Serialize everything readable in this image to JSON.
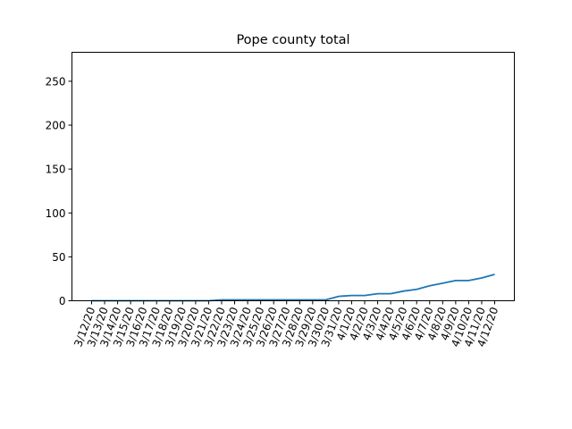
{
  "chart_data": {
    "type": "line",
    "title": "Pope county total",
    "xlabel": "",
    "ylabel": "",
    "ylim": [
      0,
      283
    ],
    "yticks": [
      0,
      50,
      100,
      150,
      200,
      250
    ],
    "grid": false,
    "line_color": "#1f77b4",
    "x": [
      "3/12/20",
      "3/13/20",
      "3/14/20",
      "3/15/20",
      "3/16/20",
      "3/17/20",
      "3/18/20",
      "3/19/20",
      "3/20/20",
      "3/21/20",
      "3/22/20",
      "3/23/20",
      "3/24/20",
      "3/25/20",
      "3/26/20",
      "3/27/20",
      "3/28/20",
      "3/29/20",
      "3/30/20",
      "3/31/20",
      "4/1/20",
      "4/2/20",
      "4/3/20",
      "4/4/20",
      "4/5/20",
      "4/6/20",
      "4/7/20",
      "4/8/20",
      "4/9/20",
      "4/10/20",
      "4/11/20",
      "4/12/20"
    ],
    "values": [
      0,
      0,
      0,
      0,
      0,
      0,
      0,
      0,
      0,
      0,
      1,
      1,
      1,
      1,
      1,
      1,
      1,
      1,
      1,
      5,
      6,
      6,
      8,
      8,
      11,
      13,
      17,
      20,
      23,
      23,
      26,
      30
    ]
  }
}
